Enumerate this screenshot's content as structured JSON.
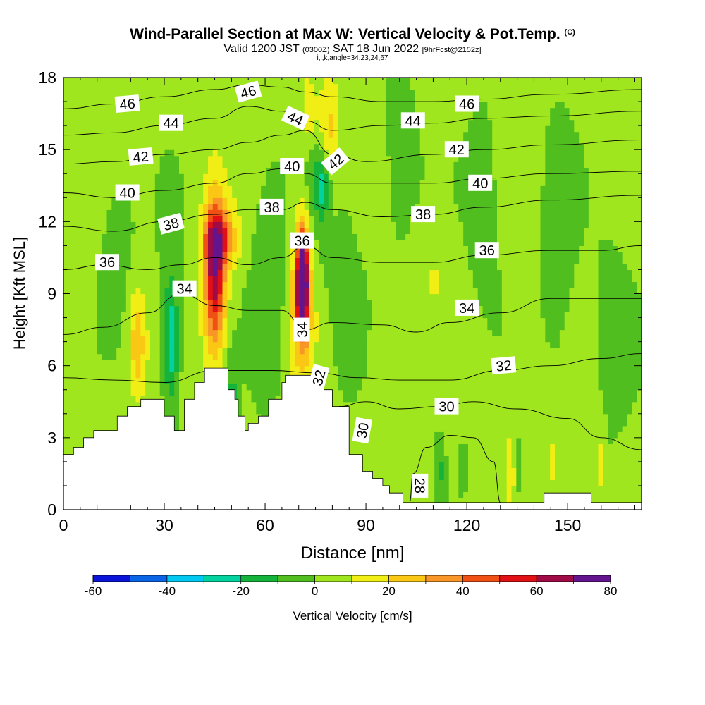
{
  "title": "Wind-Parallel Section at Max W: Vertical Velocity & Pot.Temp.",
  "title_mark": "(C)",
  "subtitle": {
    "valid_prefix": "Valid 1200 JST",
    "utc": "(0300Z)",
    "date": "SAT 18 Jun 2022",
    "forecast": "[9hrFcst@2152z]"
  },
  "subsubtitle": "i,j,k,angle=34,23,24,67",
  "chart_data": {
    "type": "heatmap",
    "xlabel": "Distance [nm]",
    "ylabel": "Height [Kft MSL]",
    "xlim": [
      0,
      172
    ],
    "ylim": [
      0,
      18
    ],
    "x_ticks": [
      0,
      30,
      60,
      90,
      120,
      150
    ],
    "y_ticks": [
      0,
      3,
      6,
      9,
      12,
      15,
      18
    ],
    "field": "Vertical Velocity",
    "contour_field": "Pot.Temp.",
    "colorbar": {
      "label": "Vertical Velocity [cm/s]",
      "levels": [
        -60,
        -50,
        -40,
        -30,
        -20,
        -10,
        0,
        10,
        20,
        30,
        40,
        50,
        60,
        70,
        80
      ],
      "tick_labels": [
        "-60",
        "-40",
        "-20",
        "0",
        "20",
        "40",
        "60",
        "80"
      ],
      "colors": [
        "#0a14d8",
        "#0a64e6",
        "#00c8f0",
        "#00d2a0",
        "#14b43c",
        "#50be1e",
        "#a0e61e",
        "#f0ee14",
        "#fac814",
        "#f89628",
        "#f05014",
        "#e01014",
        "#a00a46",
        "#64148c"
      ]
    },
    "terrain_top_kft": [
      [
        0,
        2.3
      ],
      [
        3,
        2.6
      ],
      [
        6,
        3.0
      ],
      [
        9,
        3.3
      ],
      [
        16,
        3.9
      ],
      [
        19,
        4.3
      ],
      [
        23,
        4.6
      ],
      [
        29,
        4.6
      ],
      [
        30,
        3.9
      ],
      [
        33,
        3.3
      ],
      [
        36,
        4.6
      ],
      [
        39,
        5.3
      ],
      [
        42,
        5.9
      ],
      [
        48,
        5.9
      ],
      [
        49,
        5.0
      ],
      [
        51,
        4.6
      ],
      [
        52,
        3.9
      ],
      [
        54,
        3.3
      ],
      [
        55,
        3.6
      ],
      [
        58,
        3.9
      ],
      [
        61,
        4.6
      ],
      [
        65,
        5.3
      ],
      [
        66,
        5.6
      ],
      [
        70,
        5.6
      ],
      [
        74,
        5.6
      ],
      [
        76,
        5.0
      ],
      [
        80,
        4.3
      ],
      [
        85,
        2.3
      ],
      [
        89,
        1.6
      ],
      [
        92,
        1.3
      ],
      [
        95,
        1.0
      ],
      [
        97,
        0.7
      ],
      [
        101,
        0.3
      ],
      [
        142,
        0.3
      ],
      [
        143,
        0.7
      ],
      [
        155,
        0.7
      ],
      [
        157,
        0.3
      ],
      [
        172,
        0.3
      ]
    ],
    "w_features": [
      {
        "x": 45,
        "y": 9.8,
        "sx": 3.2,
        "sy": 3.2,
        "value": 62
      },
      {
        "x": 47,
        "y": 11.3,
        "sx": 5.0,
        "sy": 1.2,
        "value": 30
      },
      {
        "x": 71,
        "y": 9.5,
        "sx": 1.8,
        "sy": 2.0,
        "value": 80
      },
      {
        "x": 71,
        "y": 9.0,
        "sx": 3.6,
        "sy": 3.6,
        "value": 28
      },
      {
        "x": 79,
        "y": 15.5,
        "sx": 3.0,
        "sy": 2.5,
        "value": 22
      },
      {
        "x": 73,
        "y": 16.5,
        "sx": 2.5,
        "sy": 1.5,
        "value": 16
      },
      {
        "x": 22,
        "y": 7.0,
        "sx": 2.6,
        "sy": 2.2,
        "value": 24
      },
      {
        "x": 32,
        "y": 7.0,
        "sx": 2.0,
        "sy": 2.4,
        "value": -28
      },
      {
        "x": 32,
        "y": 8.5,
        "sx": 5.0,
        "sy": 5.0,
        "value": -8
      },
      {
        "x": 77,
        "y": 13.6,
        "sx": 2.5,
        "sy": 1.3,
        "value": -28
      },
      {
        "x": 75,
        "y": 13.0,
        "sx": 5.0,
        "sy": 4.0,
        "value": -8
      },
      {
        "x": 61,
        "y": 9.0,
        "sx": 6.0,
        "sy": 5.0,
        "value": -12
      },
      {
        "x": 50,
        "y": 4.5,
        "sx": 2.0,
        "sy": 2.0,
        "value": -16
      },
      {
        "x": 16,
        "y": 11.0,
        "sx": 6.0,
        "sy": 4.0,
        "value": -8
      },
      {
        "x": 84,
        "y": 9.0,
        "sx": 6.0,
        "sy": 5.0,
        "value": -8
      },
      {
        "x": 100,
        "y": 15.0,
        "sx": 6.0,
        "sy": 5.0,
        "value": -8
      },
      {
        "x": 125,
        "y": 13.0,
        "sx": 7.0,
        "sy": 5.0,
        "value": -8
      },
      {
        "x": 147,
        "y": 11.0,
        "sx": 6.0,
        "sy": 7.0,
        "value": -8
      },
      {
        "x": 163,
        "y": 7.0,
        "sx": 8.0,
        "sy": 5.0,
        "value": -8
      },
      {
        "x": 112,
        "y": 1.7,
        "sx": 1.6,
        "sy": 1.4,
        "value": -14
      },
      {
        "x": 119,
        "y": 1.8,
        "sx": 1.5,
        "sy": 1.0,
        "value": -12
      },
      {
        "x": 136,
        "y": 1.7,
        "sx": 1.0,
        "sy": 1.5,
        "value": -12
      },
      {
        "x": 133,
        "y": 1.7,
        "sx": 1.0,
        "sy": 1.5,
        "value": 12
      },
      {
        "x": 146,
        "y": 2.0,
        "sx": 1.2,
        "sy": 1.8,
        "value": 12
      },
      {
        "x": 160,
        "y": 2.0,
        "sx": 1.2,
        "sy": 1.8,
        "value": 12
      },
      {
        "x": 96,
        "y": 6.5,
        "sx": 4.0,
        "sy": 1.6,
        "value": 6
      },
      {
        "x": 110,
        "y": 10.0,
        "sx": 5.0,
        "sy": 2.0,
        "value": 6
      }
    ],
    "isentropes": [
      {
        "value": 28,
        "points": [
          [
            103,
            0.3
          ],
          [
            104,
            1.5
          ],
          [
            108,
            2.6
          ],
          [
            115,
            3.1
          ],
          [
            122,
            3.0
          ],
          [
            128,
            2.0
          ],
          [
            130,
            0.3
          ]
        ]
      },
      {
        "value": 30,
        "points": [
          [
            82,
            4.3
          ],
          [
            90,
            4.5
          ],
          [
            100,
            4.2
          ],
          [
            112,
            4.3
          ],
          [
            122,
            4.5
          ],
          [
            135,
            4.2
          ],
          [
            150,
            3.8
          ],
          [
            160,
            3.0
          ],
          [
            172,
            2.5
          ]
        ]
      },
      {
        "value": 32,
        "points": [
          [
            0,
            5.5
          ],
          [
            15,
            5.4
          ],
          [
            30,
            5.3
          ],
          [
            45,
            5.8
          ],
          [
            62,
            5.8
          ],
          [
            75,
            5.7
          ],
          [
            88,
            5.5
          ],
          [
            100,
            5.4
          ],
          [
            115,
            5.4
          ],
          [
            130,
            5.8
          ],
          [
            145,
            6.0
          ],
          [
            160,
            6.3
          ],
          [
            172,
            6.5
          ]
        ]
      },
      {
        "value": 34,
        "points": [
          [
            0,
            7.3
          ],
          [
            12,
            7.6
          ],
          [
            25,
            8.2
          ],
          [
            35,
            9.0
          ],
          [
            45,
            8.5
          ],
          [
            55,
            8.3
          ],
          [
            65,
            8.3
          ],
          [
            72,
            7.5
          ],
          [
            80,
            7.8
          ],
          [
            95,
            7.7
          ],
          [
            105,
            7.4
          ],
          [
            115,
            7.8
          ],
          [
            130,
            8.2
          ],
          [
            145,
            8.8
          ],
          [
            160,
            8.8
          ],
          [
            172,
            8.8
          ]
        ]
      },
      {
        "value": 36,
        "points": [
          [
            0,
            10.0
          ],
          [
            12,
            10.2
          ],
          [
            25,
            10.0
          ],
          [
            35,
            10.2
          ],
          [
            45,
            10.5
          ],
          [
            55,
            10.2
          ],
          [
            65,
            10.5
          ],
          [
            72,
            11.0
          ],
          [
            80,
            10.5
          ],
          [
            95,
            10.3
          ],
          [
            110,
            10.3
          ],
          [
            125,
            10.6
          ],
          [
            145,
            10.8
          ],
          [
            160,
            10.8
          ],
          [
            172,
            11.0
          ]
        ]
      },
      {
        "value": 38,
        "points": [
          [
            0,
            11.8
          ],
          [
            15,
            11.6
          ],
          [
            30,
            12.0
          ],
          [
            45,
            12.3
          ],
          [
            55,
            12.5
          ],
          [
            65,
            12.5
          ],
          [
            72,
            12.8
          ],
          [
            80,
            12.5
          ],
          [
            95,
            12.2
          ],
          [
            110,
            12.3
          ],
          [
            125,
            12.6
          ],
          [
            145,
            12.9
          ],
          [
            172,
            13.1
          ]
        ]
      },
      {
        "value": 40,
        "points": [
          [
            0,
            13.2
          ],
          [
            15,
            13.0
          ],
          [
            30,
            13.3
          ],
          [
            45,
            13.6
          ],
          [
            55,
            14.0
          ],
          [
            65,
            14.2
          ],
          [
            72,
            14.0
          ],
          [
            80,
            13.6
          ],
          [
            95,
            13.6
          ],
          [
            110,
            13.6
          ],
          [
            125,
            13.8
          ],
          [
            145,
            14.0
          ],
          [
            172,
            14.1
          ]
        ]
      },
      {
        "value": 42,
        "points": [
          [
            0,
            14.4
          ],
          [
            15,
            14.5
          ],
          [
            30,
            14.8
          ],
          [
            45,
            15.0
          ],
          [
            55,
            15.3
          ],
          [
            65,
            15.6
          ],
          [
            72,
            15.8
          ],
          [
            80,
            14.8
          ],
          [
            90,
            14.5
          ],
          [
            110,
            14.8
          ],
          [
            125,
            15.0
          ],
          [
            145,
            15.2
          ],
          [
            172,
            15.4
          ]
        ]
      },
      {
        "value": 44,
        "points": [
          [
            0,
            15.6
          ],
          [
            15,
            15.7
          ],
          [
            30,
            16.0
          ],
          [
            45,
            16.3
          ],
          [
            55,
            16.8
          ],
          [
            65,
            16.6
          ],
          [
            72,
            16.2
          ],
          [
            80,
            15.8
          ],
          [
            95,
            16.0
          ],
          [
            110,
            16.1
          ],
          [
            125,
            16.3
          ],
          [
            145,
            16.4
          ],
          [
            172,
            16.6
          ]
        ]
      },
      {
        "value": 46,
        "points": [
          [
            0,
            16.7
          ],
          [
            15,
            16.9
          ],
          [
            30,
            17.2
          ],
          [
            45,
            17.5
          ],
          [
            55,
            17.7
          ],
          [
            65,
            17.6
          ],
          [
            72,
            17.4
          ],
          [
            80,
            17.2
          ],
          [
            95,
            17.0
          ],
          [
            110,
            17.0
          ],
          [
            125,
            17.1
          ],
          [
            145,
            17.3
          ],
          [
            172,
            17.5
          ]
        ]
      }
    ],
    "contour_labels": [
      {
        "text": "46",
        "x": 19,
        "y": 16.9,
        "angle": -5
      },
      {
        "text": "46",
        "x": 55,
        "y": 17.4,
        "angle": -15
      },
      {
        "text": "46",
        "x": 120,
        "y": 16.9,
        "angle": 0
      },
      {
        "text": "44",
        "x": 32,
        "y": 16.1,
        "angle": 0
      },
      {
        "text": "44",
        "x": 69,
        "y": 16.3,
        "angle": 25
      },
      {
        "text": "44",
        "x": 104,
        "y": 16.2,
        "angle": 0
      },
      {
        "text": "42",
        "x": 23,
        "y": 14.7,
        "angle": -5
      },
      {
        "text": "42",
        "x": 81,
        "y": 14.5,
        "angle": -40
      },
      {
        "text": "42",
        "x": 117,
        "y": 15.0,
        "angle": 0
      },
      {
        "text": "40",
        "x": 19,
        "y": 13.2,
        "angle": 0
      },
      {
        "text": "40",
        "x": 68,
        "y": 14.3,
        "angle": 0
      },
      {
        "text": "40",
        "x": 124,
        "y": 13.6,
        "angle": 0
      },
      {
        "text": "38",
        "x": 32,
        "y": 11.9,
        "angle": -15
      },
      {
        "text": "38",
        "x": 62,
        "y": 12.6,
        "angle": 0
      },
      {
        "text": "38",
        "x": 107,
        "y": 12.3,
        "angle": 0
      },
      {
        "text": "36",
        "x": 13,
        "y": 10.3,
        "angle": 0
      },
      {
        "text": "36",
        "x": 71,
        "y": 11.2,
        "angle": 0
      },
      {
        "text": "36",
        "x": 126,
        "y": 10.8,
        "angle": 0
      },
      {
        "text": "34",
        "x": 36,
        "y": 9.2,
        "angle": 0
      },
      {
        "text": "34",
        "x": 71,
        "y": 7.5,
        "angle": -90
      },
      {
        "text": "34",
        "x": 120,
        "y": 8.4,
        "angle": 0
      },
      {
        "text": "32",
        "x": 76,
        "y": 5.5,
        "angle": -75
      },
      {
        "text": "32",
        "x": 131,
        "y": 6.0,
        "angle": -5
      },
      {
        "text": "30",
        "x": 89,
        "y": 3.3,
        "angle": -80
      },
      {
        "text": "30",
        "x": 114,
        "y": 4.3,
        "angle": 0
      },
      {
        "text": "28",
        "x": 106,
        "y": 1.0,
        "angle": 90
      }
    ]
  }
}
